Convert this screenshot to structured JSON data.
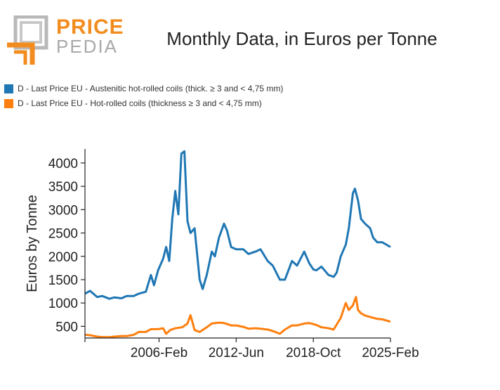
{
  "logo": {
    "word_1": "PRICE",
    "word_2": "PEDIA",
    "colors": {
      "orange": "#f28c1e",
      "grey": "#b8b8b8"
    }
  },
  "chart_data": {
    "type": "line",
    "title": "Monthly Data, in Euros per Tonne",
    "xlabel": "",
    "ylabel": "Euros by Tonne",
    "x_range": [
      "2000-01",
      "2025-02"
    ],
    "x_ticks": [
      "2006-Feb",
      "2012-Jun",
      "2018-Oct",
      "2025-Feb"
    ],
    "x_tick_positions": [
      "2006-02",
      "2012-06",
      "2018-10",
      "2025-02"
    ],
    "ylim": [
      250,
      4300
    ],
    "y_ticks": [
      500,
      1000,
      1500,
      2000,
      2500,
      3000,
      3500,
      4000
    ],
    "grid": false,
    "legend": "top-left",
    "series": [
      {
        "name": "D - Last Price EU - Austenitic hot-rolled coils (thick. ≥ 3 and < 4,75 mm)",
        "color": "#1f77b4",
        "points": [
          [
            "2000-01",
            1200
          ],
          [
            "2000-06",
            1260
          ],
          [
            "2001-01",
            1130
          ],
          [
            "2001-06",
            1150
          ],
          [
            "2002-01",
            1090
          ],
          [
            "2002-06",
            1120
          ],
          [
            "2003-01",
            1100
          ],
          [
            "2003-06",
            1150
          ],
          [
            "2004-01",
            1150
          ],
          [
            "2004-06",
            1200
          ],
          [
            "2005-01",
            1240
          ],
          [
            "2005-06",
            1600
          ],
          [
            "2005-09",
            1380
          ],
          [
            "2006-01",
            1700
          ],
          [
            "2006-06",
            1950
          ],
          [
            "2006-09",
            2200
          ],
          [
            "2006-12",
            1900
          ],
          [
            "2007-03",
            2800
          ],
          [
            "2007-06",
            3400
          ],
          [
            "2007-09",
            2900
          ],
          [
            "2007-12",
            4200
          ],
          [
            "2008-03",
            4250
          ],
          [
            "2008-06",
            2750
          ],
          [
            "2008-09",
            2500
          ],
          [
            "2009-01",
            2600
          ],
          [
            "2009-06",
            1500
          ],
          [
            "2009-09",
            1300
          ],
          [
            "2010-01",
            1600
          ],
          [
            "2010-06",
            2100
          ],
          [
            "2010-09",
            2000
          ],
          [
            "2011-01",
            2400
          ],
          [
            "2011-06",
            2700
          ],
          [
            "2011-09",
            2550
          ],
          [
            "2012-01",
            2200
          ],
          [
            "2012-06",
            2150
          ],
          [
            "2013-01",
            2150
          ],
          [
            "2013-06",
            2050
          ],
          [
            "2014-01",
            2100
          ],
          [
            "2014-06",
            2150
          ],
          [
            "2015-01",
            1900
          ],
          [
            "2015-06",
            1800
          ],
          [
            "2016-01",
            1500
          ],
          [
            "2016-06",
            1500
          ],
          [
            "2017-01",
            1900
          ],
          [
            "2017-06",
            1800
          ],
          [
            "2018-01",
            2100
          ],
          [
            "2018-06",
            1850
          ],
          [
            "2018-10",
            1720
          ],
          [
            "2019-01",
            1700
          ],
          [
            "2019-06",
            1780
          ],
          [
            "2020-01",
            1600
          ],
          [
            "2020-06",
            1560
          ],
          [
            "2020-09",
            1650
          ],
          [
            "2021-01",
            2000
          ],
          [
            "2021-06",
            2250
          ],
          [
            "2021-09",
            2600
          ],
          [
            "2022-01",
            3350
          ],
          [
            "2022-03",
            3450
          ],
          [
            "2022-06",
            3200
          ],
          [
            "2022-09",
            2800
          ],
          [
            "2023-01",
            2700
          ],
          [
            "2023-06",
            2600
          ],
          [
            "2023-09",
            2400
          ],
          [
            "2024-01",
            2300
          ],
          [
            "2024-06",
            2300
          ],
          [
            "2025-02",
            2200
          ]
        ]
      },
      {
        "name": "D - Last Price EU - Hot-rolled coils (thickness ≥ 3 and < 4,75 mm)",
        "color": "#ff7f0e",
        "points": [
          [
            "2000-01",
            320
          ],
          [
            "2000-06",
            310
          ],
          [
            "2001-01",
            280
          ],
          [
            "2001-06",
            270
          ],
          [
            "2002-01",
            270
          ],
          [
            "2002-06",
            280
          ],
          [
            "2003-01",
            290
          ],
          [
            "2003-06",
            290
          ],
          [
            "2004-01",
            320
          ],
          [
            "2004-06",
            380
          ],
          [
            "2005-01",
            380
          ],
          [
            "2005-06",
            440
          ],
          [
            "2006-01",
            440
          ],
          [
            "2006-06",
            460
          ],
          [
            "2006-09",
            340
          ],
          [
            "2007-01",
            420
          ],
          [
            "2007-06",
            460
          ],
          [
            "2008-01",
            480
          ],
          [
            "2008-06",
            560
          ],
          [
            "2008-09",
            740
          ],
          [
            "2009-01",
            420
          ],
          [
            "2009-06",
            380
          ],
          [
            "2010-01",
            480
          ],
          [
            "2010-06",
            560
          ],
          [
            "2011-01",
            580
          ],
          [
            "2011-06",
            570
          ],
          [
            "2012-01",
            520
          ],
          [
            "2012-06",
            520
          ],
          [
            "2013-01",
            490
          ],
          [
            "2013-06",
            450
          ],
          [
            "2014-01",
            460
          ],
          [
            "2014-06",
            450
          ],
          [
            "2015-01",
            430
          ],
          [
            "2015-06",
            400
          ],
          [
            "2016-01",
            340
          ],
          [
            "2016-06",
            430
          ],
          [
            "2017-01",
            520
          ],
          [
            "2017-06",
            520
          ],
          [
            "2018-01",
            560
          ],
          [
            "2018-06",
            570
          ],
          [
            "2019-01",
            530
          ],
          [
            "2019-06",
            480
          ],
          [
            "2020-01",
            460
          ],
          [
            "2020-06",
            430
          ],
          [
            "2021-01",
            680
          ],
          [
            "2021-06",
            1000
          ],
          [
            "2021-09",
            850
          ],
          [
            "2022-01",
            950
          ],
          [
            "2022-04",
            1130
          ],
          [
            "2022-06",
            850
          ],
          [
            "2022-09",
            780
          ],
          [
            "2023-01",
            730
          ],
          [
            "2023-06",
            700
          ],
          [
            "2024-01",
            660
          ],
          [
            "2024-06",
            650
          ],
          [
            "2025-02",
            600
          ]
        ]
      }
    ]
  }
}
